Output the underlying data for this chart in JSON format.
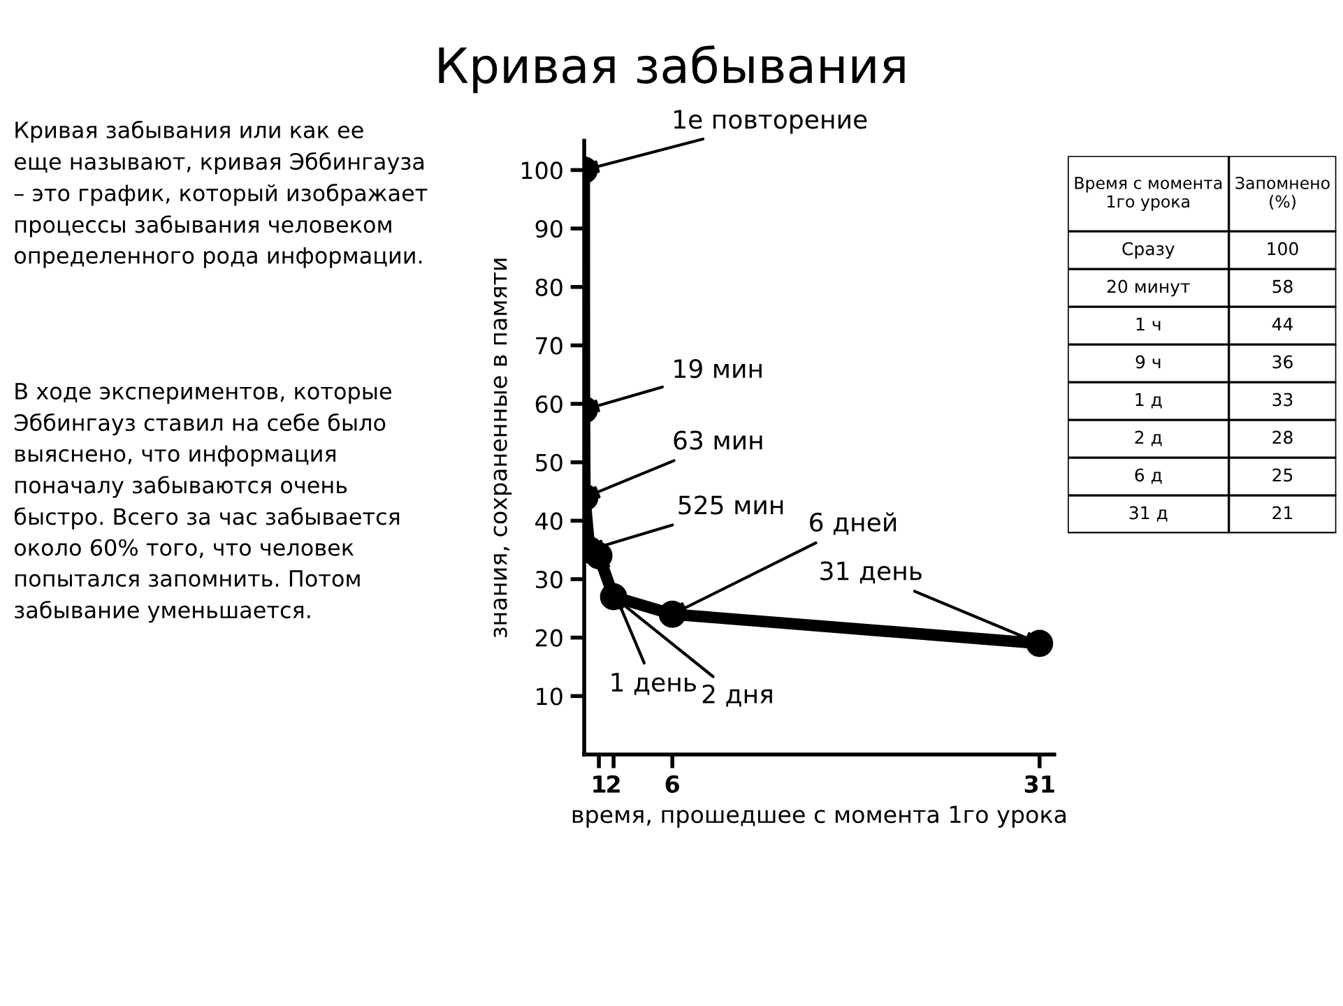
{
  "chart_data": [
    {
      "type": "other",
      "title": "Кривая забывания",
      "annotations": [
        "Кривая забывания или как ее\nеще называют, кривая Эббингауза\n– это график, который изображает\nпроцессы забывания человеком\nопределенного рода информации.",
        "В ходе экспериментов, которые\nЭббингауз ставил на себе было\nвыяснено, что информация\nпоначалу забываются очень\nбыстро. Всего за час забывается\nоколо 60% того, что человек\nпопытался запомнить. Потом\nзабывание уменьшается."
      ]
    },
    {
      "type": "line",
      "x": [
        0,
        0.0132,
        0.04375,
        0.3646,
        1,
        2,
        6,
        31
      ],
      "values": [
        100,
        59,
        44,
        35,
        34,
        27,
        24,
        19
      ],
      "color": "#000000",
      "marker": "circle",
      "xlim": [
        0,
        32
      ],
      "ylim": [
        0,
        105
      ],
      "xticks": [
        1,
        2,
        6,
        31
      ],
      "yticks": [
        10,
        20,
        30,
        40,
        50,
        60,
        70,
        80,
        90,
        100
      ],
      "grid": false,
      "xlabel": "время, прошедшее с момента 1го урока",
      "ylabel": "знания, сохраненные в памяти",
      "annotations": [
        {
          "text": "1е повторение",
          "x": 0,
          "y": 100
        },
        {
          "text": "19 мин",
          "x": 0.0132,
          "y": 59
        },
        {
          "text": "63 мин",
          "x": 0.04375,
          "y": 44
        },
        {
          "text": "525 мин",
          "x": 0.3646,
          "y": 35
        },
        {
          "text": "1 день",
          "x": 1,
          "y": 34
        },
        {
          "text": "2 дня",
          "x": 2,
          "y": 27
        },
        {
          "text": "6 дней",
          "x": 6,
          "y": 24
        },
        {
          "text": "31 день",
          "x": 31,
          "y": 19
        }
      ]
    },
    {
      "type": "other",
      "xlabel": "Время с момента\n1го урока",
      "ylabel": "Запомнено\n(%)",
      "categories": [
        "Сразу",
        "20 минут",
        "1 ч",
        "9 ч",
        "1 д",
        "2 д",
        "6 д",
        "31 д"
      ],
      "values": [
        100,
        58,
        44,
        36,
        33,
        28,
        25,
        21
      ],
      "data_labels": true
    }
  ]
}
